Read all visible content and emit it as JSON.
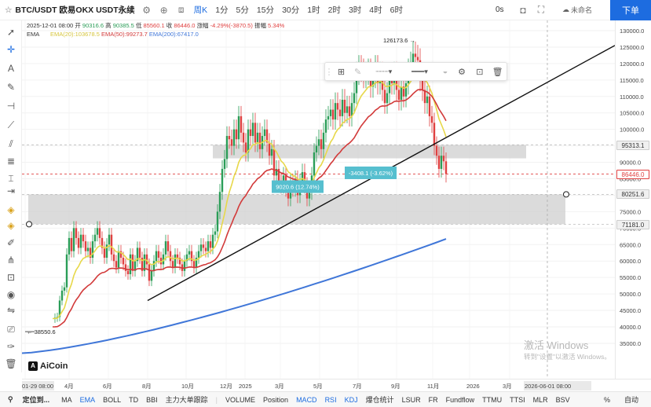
{
  "topbar": {
    "symbol": "BTC/USDT 欧易OKX USDT永续",
    "timeframes": [
      "周K",
      "1分",
      "5分",
      "15分",
      "30分",
      "1时",
      "2时",
      "3时",
      "4时",
      "6时"
    ],
    "active_timeframe": "周K",
    "seconds": "0s",
    "login": "未命名",
    "buy": "下单"
  },
  "info": {
    "line1": {
      "date": "2025-12-01 08:00",
      "open_label": "开",
      "open": "90316.6",
      "high_label": "高",
      "high": "90385.5",
      "low_label": "低",
      "low": "85560.1",
      "close_label": "收",
      "close": "86446.0",
      "chg_label": "涨幅",
      "chg": "-4.29%(-3870.5)",
      "amp_label": "振幅",
      "amp": "5.34%"
    },
    "line2": {
      "ema": "EMA",
      "ema20": "EMA(20):103678.5",
      "ema50": "EMA(50):99273.7",
      "ema200": "EMA(200):67417.0"
    }
  },
  "colors": {
    "up": "#2a9d57",
    "down": "#e04040",
    "ema20": "#e7d84a",
    "ema50": "#d23a3a",
    "ema200": "#3f76d8",
    "accent": "#1d6ce0",
    "label_teal": "#56bfcf"
  },
  "chart_data": {
    "type": "candlestick",
    "y_ticks": [
      "130000.0",
      "125000.0",
      "120000.0",
      "115000.0",
      "110000.0",
      "105000.0",
      "100000.0",
      "95000.0",
      "90000.0",
      "85000.0",
      "80000.0",
      "75000.0",
      "70000.0",
      "65000.0",
      "60000.0",
      "55000.0",
      "50000.0",
      "45000.0",
      "40000.0",
      "35000.0"
    ],
    "x_ticks": [
      "01-29 08:00",
      "4月",
      "6月",
      "8月",
      "10月",
      "12月",
      "2025",
      "3月",
      "5月",
      "7月",
      "9月",
      "11月",
      "2026",
      "3月",
      "2026-06-01 08:00"
    ],
    "price_labels": [
      {
        "text": "95313.1",
        "style": "gray"
      },
      {
        "text": "86446.0",
        "style": "red"
      },
      {
        "text": "80251.6",
        "style": "gray"
      },
      {
        "text": "71181.0",
        "style": "gray"
      }
    ],
    "annotations": {
      "high": "126173.6",
      "low": "38550.6",
      "measure_up": "9020.6 (12.74%)",
      "measure_down": "-3408.1 (-3.62%)"
    },
    "ema_legend": [
      "EMA(20)",
      "EMA(50)",
      "EMA(200)"
    ]
  },
  "floating_toolbar": {
    "icons": [
      "grid-icon",
      "pencil-icon",
      "line-style-icon",
      "line-width-icon",
      "color-icon",
      "settings-icon",
      "lock-icon",
      "trash-icon"
    ]
  },
  "logo": "AiCoin",
  "watermark": {
    "line1": "激活 Windows",
    "line2": "转到\"设置\"以激活 Windows。"
  },
  "bottombar": {
    "locate": "定位到...",
    "items": [
      "MA",
      "EMA",
      "BOLL",
      "TD",
      "BBI",
      "主力大单跟踪",
      "VOLUME",
      "Position",
      "MACD",
      "RSI",
      "KDJ",
      "爆仓统计",
      "LSUR",
      "FR",
      "Fundflow",
      "TTMU",
      "TTSI",
      "MLR",
      "BSV"
    ],
    "highlighted": [
      "EMA",
      "MACD",
      "RSI",
      "KDJ"
    ],
    "percent": "%",
    "auto": "自动"
  }
}
